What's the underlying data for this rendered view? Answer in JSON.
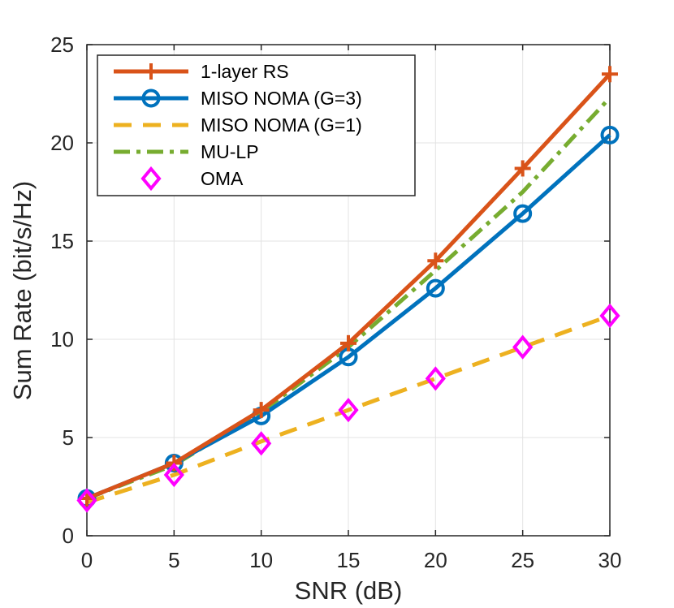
{
  "chart_data": {
    "type": "line",
    "xlabel": "SNR (dB)",
    "ylabel": "Sum Rate (bit/s/Hz)",
    "x": [
      0,
      5,
      10,
      15,
      20,
      25,
      30
    ],
    "xlim": [
      0,
      30
    ],
    "ylim": [
      0,
      25
    ],
    "xticks": [
      "0",
      "5",
      "10",
      "15",
      "20",
      "25",
      "30"
    ],
    "yticks": [
      "0",
      "5",
      "10",
      "15",
      "20",
      "25"
    ],
    "grid": true,
    "legend_position": "top-left",
    "series": [
      {
        "name": "1-layer RS",
        "values": [
          1.9,
          3.7,
          6.4,
          9.8,
          14.0,
          18.7,
          23.5
        ],
        "color": "#D95319",
        "style": "solid",
        "marker": "plus"
      },
      {
        "name": "MISO NOMA (G=3)",
        "values": [
          1.9,
          3.7,
          6.1,
          9.1,
          12.6,
          16.4,
          20.4
        ],
        "color": "#0072BD",
        "style": "solid",
        "marker": "circle"
      },
      {
        "name": "MISO NOMA (G=1)",
        "values": [
          1.7,
          3.1,
          4.8,
          6.4,
          8.0,
          9.6,
          11.2
        ],
        "color": "#EDB120",
        "style": "dashed",
        "marker": "none"
      },
      {
        "name": "MU-LP",
        "values": [
          1.9,
          3.6,
          6.3,
          9.6,
          13.5,
          17.5,
          22.3
        ],
        "color": "#77AC30",
        "style": "dashdot",
        "marker": "none"
      },
      {
        "name": "OMA",
        "values": [
          1.8,
          3.1,
          4.7,
          6.4,
          8.0,
          9.6,
          11.2
        ],
        "color": "#FF00FF",
        "style": "none",
        "marker": "diamond"
      }
    ]
  }
}
